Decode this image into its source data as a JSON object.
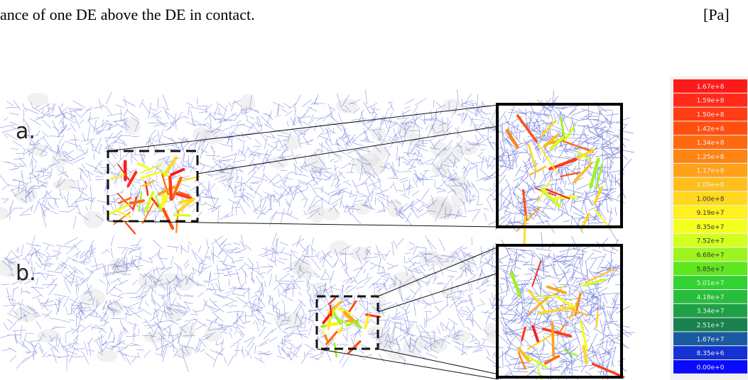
{
  "caption": {
    "text": "ance of one DE above the DE in contact.",
    "unit": "[Pa]"
  },
  "panels": [
    {
      "label": "a."
    },
    {
      "label": "b."
    }
  ],
  "legend": {
    "labels": [
      "1.67e+8",
      "1.59e+8",
      "1.50e+8",
      "1.42e+8",
      "1.34e+8",
      "1.25e+8",
      "1.17e+8",
      "1.09e+8",
      "1.00e+8",
      "9.19e+7",
      "8.35e+7",
      "7.52e+7",
      "6.68e+7",
      "5.85e+7",
      "5.01e+7",
      "4.18e+7",
      "3.34e+7",
      "2.51e+7",
      "1.67e+7",
      "8.35e+6",
      "0.00e+0"
    ],
    "colors": [
      "#ff1a1a",
      "#ff2a1a",
      "#ff3c14",
      "#ff5010",
      "#ff6a10",
      "#ff8414",
      "#ffa21a",
      "#ffbe1e",
      "#ffd81e",
      "#fff01e",
      "#f4ff1e",
      "#d2ff1e",
      "#9cf51e",
      "#5ee61e",
      "#32d232",
      "#28be3c",
      "#1ea046",
      "#1a8250",
      "#1a5aa0",
      "#1432d2",
      "#0a0aff"
    ]
  }
}
